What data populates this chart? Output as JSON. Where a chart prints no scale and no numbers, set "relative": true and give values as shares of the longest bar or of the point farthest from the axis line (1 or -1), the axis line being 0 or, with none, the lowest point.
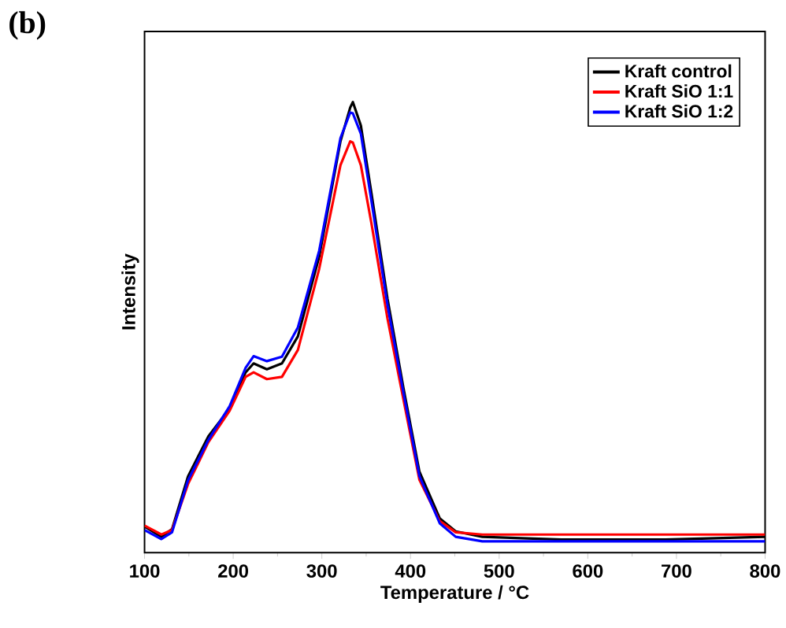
{
  "chart_data": {
    "type": "line",
    "title": "(b)",
    "xlabel": "Temperature / °C",
    "ylabel": "Intensity",
    "relative": true,
    "xlim": [
      100,
      800
    ],
    "xticks": [
      100,
      200,
      300,
      400,
      500,
      600,
      700,
      800
    ],
    "legend": "top right",
    "series": [
      {
        "name": "Kraft control",
        "color": "#000000",
        "x": [
          100,
          119,
          131,
          149,
          172,
          196,
          214,
          223,
          238,
          255,
          273,
          297,
          321,
          332,
          335,
          344,
          356,
          374,
          392,
          410,
          433,
          451,
          481,
          570,
          688,
          800
        ],
        "values": [
          0.058,
          0.035,
          0.052,
          0.169,
          0.258,
          0.32,
          0.4,
          0.42,
          0.407,
          0.42,
          0.48,
          0.657,
          0.913,
          0.988,
          1.0,
          0.948,
          0.797,
          0.564,
          0.366,
          0.18,
          0.076,
          0.047,
          0.035,
          0.029,
          0.029,
          0.035
        ]
      },
      {
        "name": "Kraft SiO 1:1",
        "color": "#ff0000",
        "x": [
          100,
          119,
          131,
          149,
          172,
          196,
          214,
          223,
          238,
          255,
          273,
          297,
          321,
          332,
          335,
          344,
          356,
          374,
          392,
          410,
          433,
          451,
          481,
          570,
          688,
          800
        ],
        "values": [
          0.06,
          0.04,
          0.05,
          0.152,
          0.245,
          0.315,
          0.39,
          0.4,
          0.385,
          0.39,
          0.45,
          0.63,
          0.86,
          0.913,
          0.91,
          0.86,
          0.73,
          0.52,
          0.34,
          0.162,
          0.07,
          0.045,
          0.04,
          0.04,
          0.04,
          0.04
        ]
      },
      {
        "name": "Kraft SiO 1:2",
        "color": "#0000ff",
        "x": [
          100,
          119,
          131,
          149,
          172,
          196,
          214,
          223,
          238,
          255,
          273,
          297,
          321,
          332,
          335,
          344,
          356,
          374,
          392,
          410,
          433,
          451,
          481,
          570,
          688,
          800
        ],
        "values": [
          0.05,
          0.03,
          0.045,
          0.16,
          0.25,
          0.325,
          0.41,
          0.436,
          0.425,
          0.435,
          0.5,
          0.67,
          0.92,
          0.977,
          0.975,
          0.93,
          0.78,
          0.55,
          0.355,
          0.17,
          0.065,
          0.035,
          0.025,
          0.025,
          0.025,
          0.025
        ]
      }
    ]
  }
}
